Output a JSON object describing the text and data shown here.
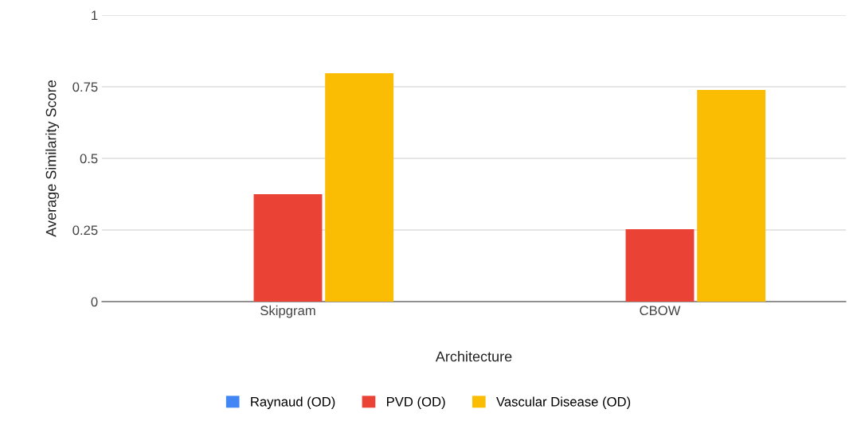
{
  "chart_data": {
    "type": "bar",
    "xlabel": "Architecture",
    "ylabel": "Average Similarity Score",
    "categories": [
      "Skipgram",
      "CBOW"
    ],
    "series": [
      {
        "name": "Raynaud (OD)",
        "color": "#4285f4",
        "values": [
          0,
          0
        ]
      },
      {
        "name": "PVD (OD)",
        "color": "#ea4335",
        "values": [
          0.375,
          0.253
        ]
      },
      {
        "name": "Vascular Disease (OD)",
        "color": "#fbbc04",
        "values": [
          0.797,
          0.739
        ]
      }
    ],
    "ylim": [
      0,
      1
    ],
    "yticks": [
      0,
      0.25,
      0.5,
      0.75,
      1
    ],
    "grid": "y",
    "legend": "bottom"
  }
}
